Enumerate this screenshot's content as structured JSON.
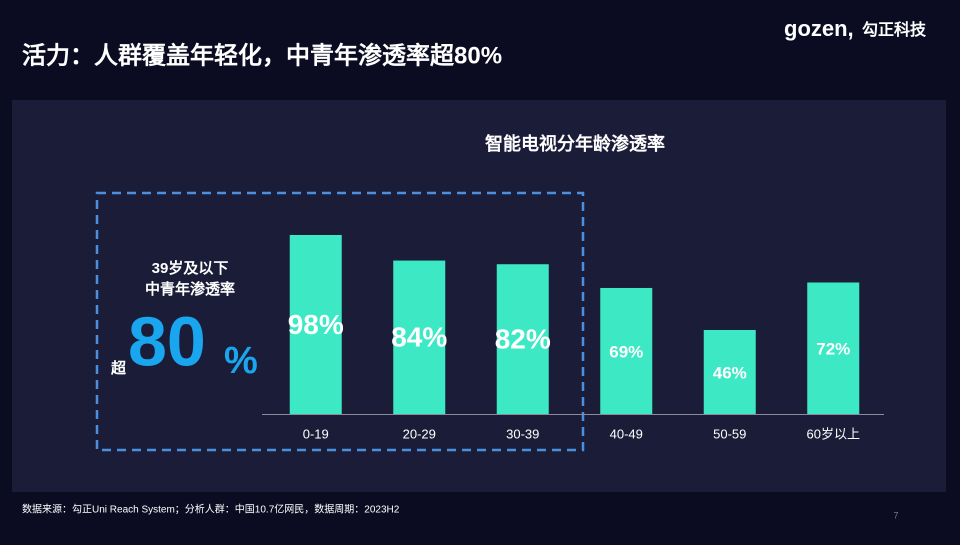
{
  "header": {
    "title": "活力：人群覆盖年轻化，中青年渗透率超80%",
    "logo_mark": "gozen,",
    "logo_text": "勾正科技"
  },
  "chart_data": {
    "type": "bar",
    "title": "智能电视分年龄渗透率",
    "categories": [
      "0-19",
      "20-29",
      "30-39",
      "40-49",
      "50-59",
      "60岁以上"
    ],
    "values": [
      98,
      84,
      82,
      69,
      46,
      72
    ],
    "value_labels": [
      "98%",
      "84%",
      "82%",
      "69%",
      "46%",
      "72%"
    ],
    "color": "#3de8c5"
  },
  "highlight": {
    "line1": "39岁及以下",
    "line2": "中青年渗透率",
    "prefix": "超",
    "value": 80,
    "unit": "%"
  },
  "footer": {
    "source": "数据来源：勾正Uni Reach System；分析人群：中国10.7亿网民，数据周期：2023H2",
    "page": "7"
  }
}
